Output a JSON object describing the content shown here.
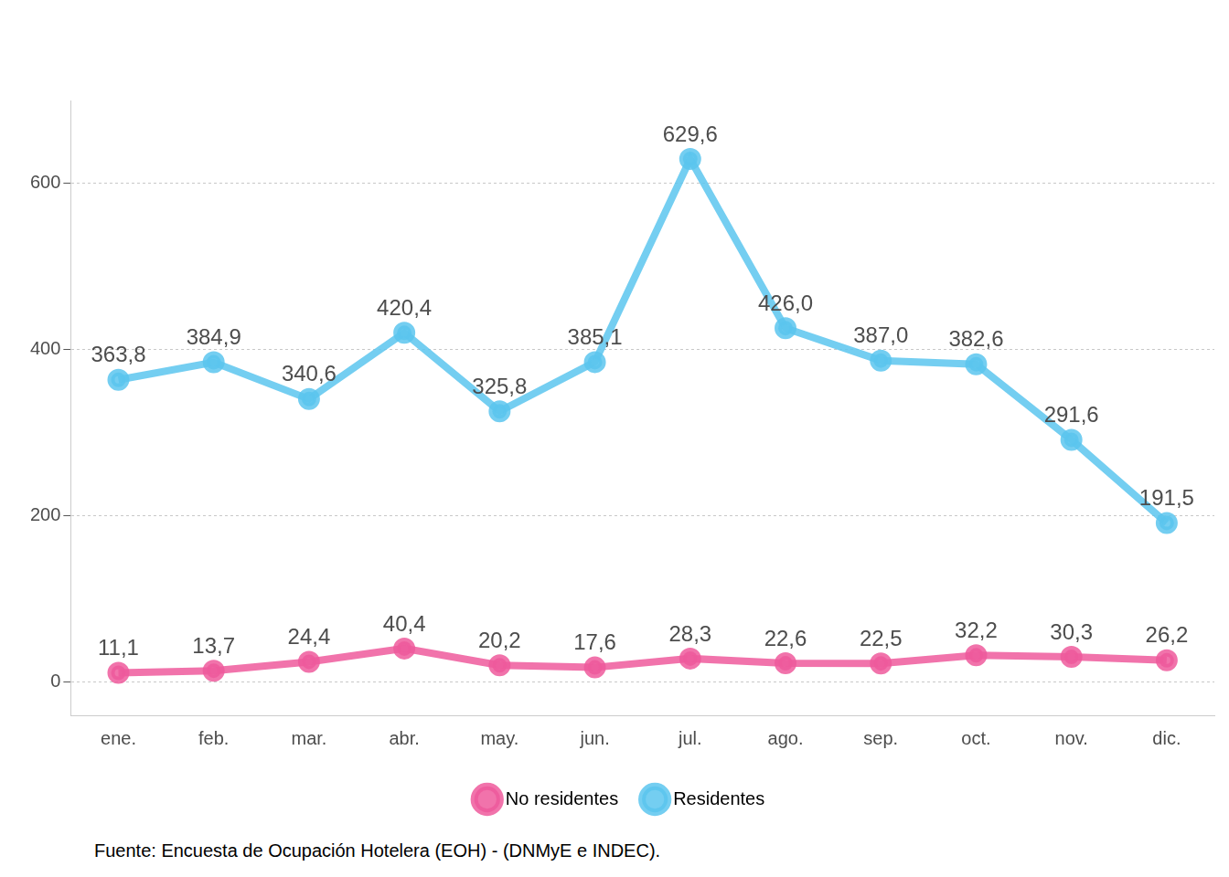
{
  "chart_data": {
    "type": "line",
    "caption": "Fuente: Encuesta de Ocupación Hotelera (EOH) - (DNMyE e INDEC).",
    "categories": [
      "ene.",
      "feb.",
      "mar.",
      "abr.",
      "may.",
      "jun.",
      "jul.",
      "ago.",
      "sep.",
      "oct.",
      "nov.",
      "dic."
    ],
    "series": [
      {
        "name": "No residentes",
        "color": "#ee5a9c",
        "marker": "circle",
        "values": [
          11.1,
          13.7,
          24.4,
          40.4,
          20.2,
          17.6,
          28.3,
          22.6,
          22.5,
          32.2,
          30.3,
          26.2
        ],
        "value_labels": [
          "11,1",
          "13,7",
          "24,4",
          "40,4",
          "20,2",
          "17,6",
          "28,3",
          "22,6",
          "22,5",
          "32,2",
          "30,3",
          "26,2"
        ]
      },
      {
        "name": "Residentes",
        "color": "#5cc6ee",
        "marker": "circle",
        "values": [
          363.8,
          384.9,
          340.6,
          420.4,
          325.8,
          385.1,
          629.6,
          426.0,
          387.0,
          382.6,
          291.6,
          191.5
        ],
        "value_labels": [
          "363,8",
          "384,9",
          "340,6",
          "420,4",
          "325,8",
          "385,1",
          "629,6",
          "426,0",
          "387,0",
          "382,6",
          "291,6",
          "191,5"
        ]
      }
    ],
    "ylim": [
      -40,
      700
    ],
    "yticks": [
      0,
      200,
      400,
      600
    ],
    "grid": true,
    "legend": "bottom",
    "data_labels": true
  }
}
